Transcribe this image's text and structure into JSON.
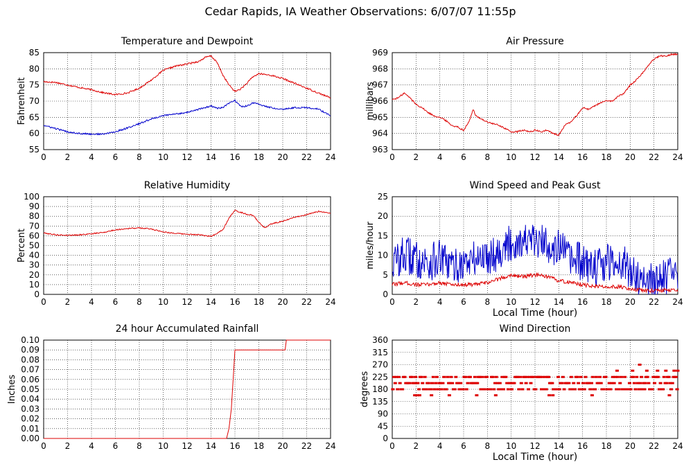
{
  "page": {
    "title": "Cedar Rapids, IA Weather Observations: 6/07/07 11:55p"
  },
  "colors": {
    "red": "#dd0000",
    "blue": "#0000cc",
    "grid": "#000000"
  },
  "chart_data": [
    {
      "id": "temp",
      "type": "line",
      "title": "Temperature and Dewpoint",
      "xlabel": "",
      "ylabel": "Fahrenheit",
      "xlim": [
        0,
        24
      ],
      "ylim": [
        55,
        85
      ],
      "xticks": [
        0,
        2,
        4,
        6,
        8,
        10,
        12,
        14,
        16,
        18,
        20,
        22,
        24
      ],
      "yticks": [
        55,
        60,
        65,
        70,
        75,
        80,
        85
      ],
      "series": [
        {
          "color": "red",
          "noise": 0.25,
          "x": [
            0,
            1,
            2,
            3,
            4,
            5,
            6,
            7,
            8,
            9,
            10,
            11,
            12,
            13,
            13.5,
            14,
            14.5,
            15,
            15.5,
            16,
            16.5,
            17,
            17.5,
            18,
            19,
            20,
            21,
            22,
            23,
            24
          ],
          "y": [
            76,
            75.8,
            75,
            74.2,
            73.5,
            72.6,
            72,
            72.5,
            74,
            76.5,
            79.5,
            80.8,
            81.5,
            82.3,
            83.5,
            84,
            82,
            78,
            75,
            73,
            73.8,
            75.5,
            77.5,
            78.5,
            78,
            77,
            75.5,
            74,
            72.5,
            71
          ]
        },
        {
          "color": "blue",
          "noise": 0.25,
          "x": [
            0,
            1,
            2,
            3,
            4,
            5,
            6,
            7,
            8,
            9,
            10,
            11,
            12,
            13,
            14,
            14.5,
            15,
            15.5,
            16,
            16.5,
            17,
            17.5,
            18,
            19,
            20,
            21,
            22,
            23,
            24
          ],
          "y": [
            62.5,
            61.5,
            60.5,
            60,
            59.8,
            59.8,
            60.5,
            61.7,
            63,
            64.5,
            65.5,
            66,
            66.5,
            67.5,
            68.5,
            67.8,
            68,
            69.3,
            70.2,
            68.3,
            68.5,
            69.5,
            69,
            68,
            67.5,
            68,
            68,
            67.5,
            65.5
          ]
        }
      ]
    },
    {
      "id": "pressure",
      "type": "line",
      "title": "Air Pressure",
      "xlabel": "",
      "ylabel": "millibars",
      "xlim": [
        0,
        24
      ],
      "ylim": [
        963,
        969
      ],
      "xticks": [
        0,
        2,
        4,
        6,
        8,
        10,
        12,
        14,
        16,
        18,
        20,
        22,
        24
      ],
      "yticks": [
        963,
        964,
        965,
        966,
        967,
        968,
        969
      ],
      "series": [
        {
          "color": "red",
          "noise": 0.05,
          "x": [
            0,
            0.5,
            1,
            1.5,
            2,
            2.5,
            3,
            3.5,
            4,
            4.5,
            5,
            5.5,
            6,
            6.5,
            6.8,
            7,
            7.5,
            8,
            8.5,
            9,
            9.5,
            10,
            10.5,
            11,
            11.5,
            12,
            12.5,
            13,
            13.5,
            14,
            14.5,
            15,
            15.5,
            16,
            16.5,
            17,
            17.5,
            18,
            18.5,
            19,
            19.5,
            20,
            20.5,
            21,
            21.5,
            22,
            22.5,
            23,
            23.5,
            24
          ],
          "y": [
            966.1,
            966.2,
            966.5,
            966.2,
            965.8,
            965.6,
            965.3,
            965.1,
            965,
            964.8,
            964.5,
            964.4,
            964.2,
            964.8,
            965.5,
            965.1,
            964.9,
            964.7,
            964.6,
            964.5,
            964.3,
            964.1,
            964.1,
            964.2,
            964.1,
            964.2,
            964.1,
            964.2,
            964,
            963.9,
            964.5,
            964.7,
            965.1,
            965.6,
            965.5,
            965.7,
            965.9,
            966,
            966,
            966.3,
            966.5,
            967,
            967.3,
            967.7,
            968.2,
            968.6,
            968.8,
            968.8,
            968.9,
            968.9
          ]
        }
      ]
    },
    {
      "id": "humidity",
      "type": "line",
      "title": "Relative Humidity",
      "xlabel": "",
      "ylabel": "Percent",
      "xlim": [
        0,
        24
      ],
      "ylim": [
        0,
        100
      ],
      "xticks": [
        0,
        2,
        4,
        6,
        8,
        10,
        12,
        14,
        16,
        18,
        20,
        22,
        24
      ],
      "yticks": [
        0,
        10,
        20,
        30,
        40,
        50,
        60,
        70,
        80,
        90,
        100
      ],
      "series": [
        {
          "color": "red",
          "noise": 0.6,
          "x": [
            0,
            1,
            2,
            3,
            4,
            5,
            6,
            7,
            8,
            9,
            10,
            11,
            12,
            13,
            13.5,
            14,
            14.5,
            15,
            15.5,
            16,
            16.5,
            17,
            17.5,
            18,
            18.5,
            19,
            20,
            21,
            22,
            23,
            24
          ],
          "y": [
            63,
            61,
            60.5,
            61,
            62,
            63.5,
            66,
            67.5,
            68,
            67,
            64,
            62.5,
            61.5,
            61,
            60,
            59.5,
            62.5,
            66.5,
            78,
            86,
            84,
            82,
            81,
            74,
            68,
            72,
            75,
            79,
            81.5,
            85,
            83
          ]
        }
      ]
    },
    {
      "id": "wind",
      "type": "line",
      "title": "Wind Speed and Peak Gust",
      "xlabel": "Local Time (hour)",
      "ylabel": "miles/hour",
      "xlim": [
        0,
        24
      ],
      "ylim": [
        0,
        25
      ],
      "xticks": [
        0,
        2,
        4,
        6,
        8,
        10,
        12,
        14,
        16,
        18,
        20,
        22,
        24
      ],
      "yticks": [
        0,
        5,
        10,
        15,
        20,
        25
      ],
      "series": [
        {
          "color": "blue",
          "noise": 5,
          "x": [
            0,
            1,
            2,
            3,
            4,
            5,
            6,
            7,
            8,
            9,
            10,
            11,
            12,
            13,
            14,
            15,
            16,
            17,
            18,
            19,
            20,
            21,
            22,
            23,
            24
          ],
          "y": [
            8,
            10,
            9,
            8,
            9,
            7,
            8,
            9,
            10,
            11,
            13,
            14,
            13,
            13,
            12,
            9,
            8,
            7,
            8,
            9,
            6,
            4,
            3,
            5,
            4
          ]
        },
        {
          "color": "red",
          "noise": 0.5,
          "x": [
            0,
            1,
            2,
            3,
            4,
            5,
            6,
            7,
            8,
            9,
            10,
            11,
            12,
            13,
            14,
            15,
            16,
            17,
            18,
            19,
            20,
            21,
            22,
            23,
            24
          ],
          "y": [
            2.5,
            3,
            2.5,
            2.5,
            3,
            2.5,
            2.5,
            2.5,
            3,
            4,
            5,
            4.5,
            5,
            4.5,
            3.5,
            3,
            2.5,
            2,
            2,
            2,
            1.5,
            1,
            1,
            1,
            1
          ]
        }
      ]
    },
    {
      "id": "rain",
      "type": "line",
      "title": "24 hour Accumulated Rainfall",
      "xlabel": "",
      "ylabel": "Inches",
      "xlim": [
        0,
        24
      ],
      "ylim": [
        0,
        0.1
      ],
      "xticks": [
        0,
        2,
        4,
        6,
        8,
        10,
        12,
        14,
        16,
        18,
        20,
        22,
        24
      ],
      "yticks": [
        "0.00",
        "0.01",
        "0.02",
        "0.03",
        "0.04",
        "0.05",
        "0.06",
        "0.07",
        "0.08",
        "0.09",
        "0.10"
      ],
      "series": [
        {
          "color": "red",
          "noise": 0,
          "x": [
            0,
            15.3,
            15.5,
            15.7,
            15.9,
            16,
            20.2,
            20.3,
            24
          ],
          "y": [
            0,
            0,
            0.01,
            0.03,
            0.07,
            0.09,
            0.09,
            0.1,
            0.1
          ]
        }
      ]
    },
    {
      "id": "direction",
      "type": "scatter",
      "title": "Wind Direction",
      "xlabel": "Local Time (hour)",
      "ylabel": "degrees",
      "xlim": [
        0,
        24
      ],
      "ylim": [
        0,
        360
      ],
      "xticks": [
        0,
        2,
        4,
        6,
        8,
        10,
        12,
        14,
        16,
        18,
        20,
        22,
        24
      ],
      "yticks": [
        0,
        45,
        90,
        135,
        180,
        225,
        270,
        315,
        360
      ],
      "series": [
        {
          "color": "red",
          "marker": "dash",
          "spacing": 0.1,
          "choices": [
            180,
            202.5,
            225
          ],
          "random_seed": 7,
          "extra_points": [
            [
              1.9,
              158
            ],
            [
              2.1,
              158
            ],
            [
              2.3,
              158
            ],
            [
              3.3,
              158
            ],
            [
              4.8,
              158
            ],
            [
              7.1,
              158
            ],
            [
              8.7,
              158
            ],
            [
              13.2,
              158
            ],
            [
              13.5,
              158
            ],
            [
              16.8,
              158
            ],
            [
              18.9,
              248
            ],
            [
              20.2,
              248
            ],
            [
              20.8,
              270
            ],
            [
              21.4,
              248
            ],
            [
              22.3,
              248
            ],
            [
              23,
              248
            ],
            [
              23.3,
              158
            ],
            [
              23.7,
              248
            ],
            [
              24,
              248
            ],
            [
              21,
              180
            ],
            [
              21.2,
              180
            ]
          ]
        }
      ]
    }
  ]
}
